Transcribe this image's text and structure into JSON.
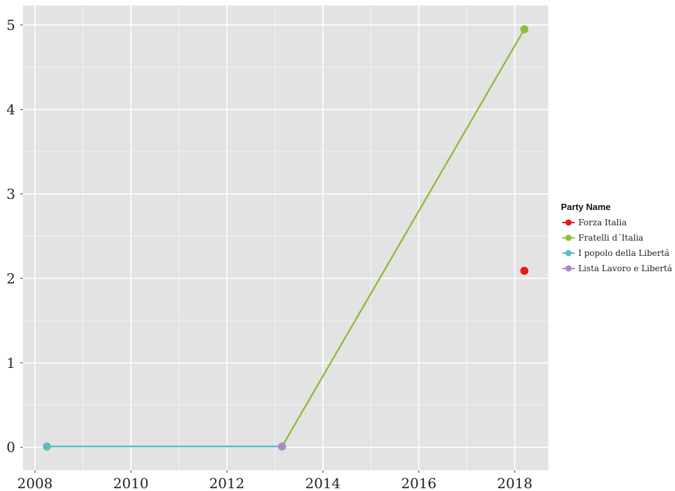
{
  "chart_data": {
    "type": "line",
    "xlim": [
      2007.75,
      2018.7
    ],
    "ylim": [
      -0.27,
      5.23
    ],
    "x_ticks": [
      2008,
      2010,
      2012,
      2014,
      2016,
      2018
    ],
    "y_ticks": [
      0,
      1,
      2,
      3,
      4,
      5
    ],
    "grid": true,
    "legend": {
      "title": "Party Name",
      "placement": "right"
    },
    "series": [
      {
        "name": "Forza Italia",
        "color": "#e41a1c",
        "points": [
          [
            2018.2,
            2.09
          ]
        ]
      },
      {
        "name": "Fratelli d´Italia",
        "color": "#8fbc3a",
        "points": [
          [
            2018.2,
            4.95
          ]
        ]
      },
      {
        "name": "I popolo della Libertá",
        "color": "#5bbcc4",
        "points": [
          [
            2008.25,
            0.01
          ]
        ]
      },
      {
        "name": "Lista Lavoro e Libertá",
        "color": "#a98bc6",
        "points": [
          [
            2013.15,
            0.01
          ]
        ]
      }
    ],
    "segments": [
      {
        "from": [
          2008.25,
          0.01
        ],
        "to": [
          2013.15,
          0.01
        ],
        "color": "#5bbcc4"
      },
      {
        "from": [
          2013.15,
          0.01
        ],
        "to": [
          2018.2,
          4.95
        ],
        "color": "#8fbc3a"
      }
    ]
  }
}
